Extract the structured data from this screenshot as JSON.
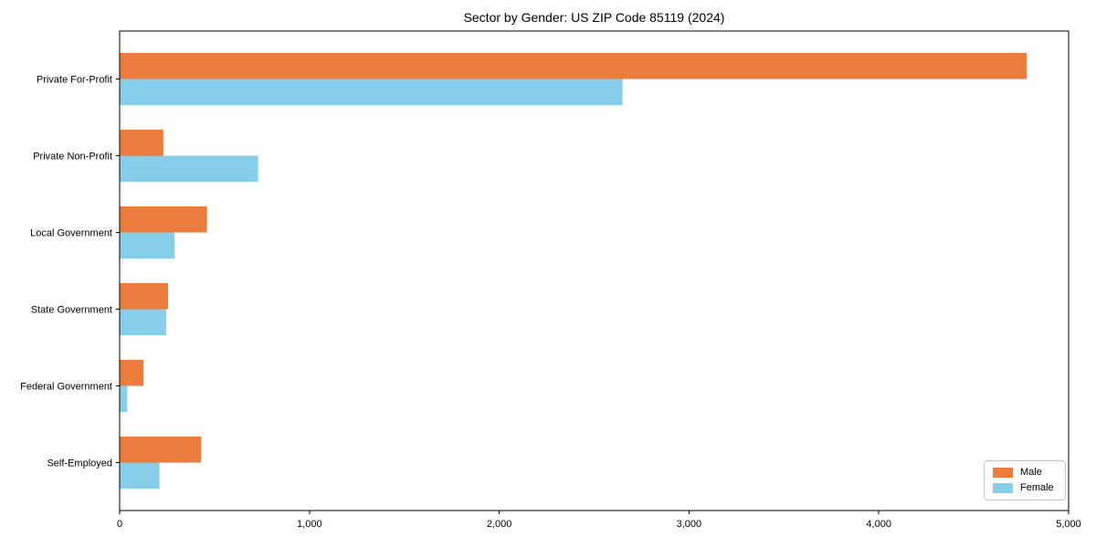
{
  "chart_data": {
    "type": "bar",
    "orientation": "horizontal",
    "title": "Sector by Gender: US ZIP Code 85119 (2024)",
    "categories": [
      "Private For-Profit",
      "Private Non-Profit",
      "Local Government",
      "State Government",
      "Federal Government",
      "Self-Employed"
    ],
    "series": [
      {
        "name": "Male",
        "color": "#EC7C3C",
        "values": [
          4780,
          230,
          460,
          255,
          125,
          430
        ]
      },
      {
        "name": "Female",
        "color": "#87CEEB",
        "values": [
          2650,
          730,
          290,
          245,
          40,
          210
        ]
      }
    ],
    "xlabel": "",
    "ylabel": "",
    "xlim": [
      0,
      5000
    ],
    "xticks": [
      {
        "value": 0,
        "label": "0"
      },
      {
        "value": 1000,
        "label": "1,000"
      },
      {
        "value": 2000,
        "label": "2,000"
      },
      {
        "value": 3000,
        "label": "3,000"
      },
      {
        "value": 4000,
        "label": "4,000"
      },
      {
        "value": 5000,
        "label": "5,000"
      }
    ],
    "grid": false,
    "legend": {
      "position": "lower-right",
      "entries": [
        "Male",
        "Female"
      ]
    },
    "colors": {
      "axis": "#000000",
      "text": "#000000",
      "background": "#ffffff",
      "legend_border": "#c4c4c4"
    }
  }
}
